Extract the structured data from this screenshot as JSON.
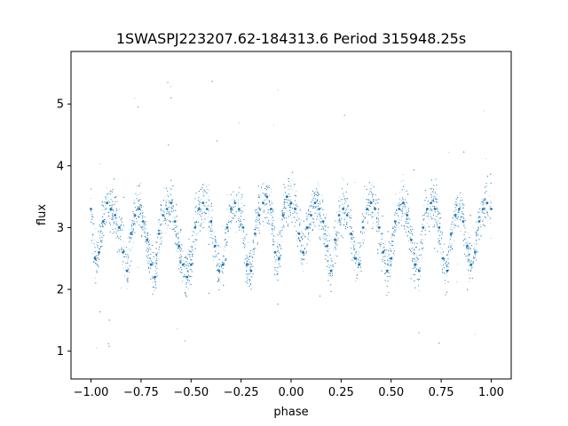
{
  "chart_data": {
    "type": "scatter",
    "title": "1SWASPJ223207.62-184313.6 Period 315948.25s",
    "xlabel": "phase",
    "ylabel": "flux",
    "xlim": [
      -1.1,
      1.1
    ],
    "ylim": [
      0.55,
      5.85
    ],
    "x_ticks": [
      -1.0,
      -0.75,
      -0.5,
      -0.25,
      0.0,
      0.25,
      0.5,
      0.75,
      1.0
    ],
    "x_tick_labels": [
      "−1.00",
      "−0.75",
      "−0.50",
      "−0.25",
      "0.00",
      "0.25",
      "0.50",
      "0.75",
      "1.00"
    ],
    "y_ticks": [
      1,
      2,
      3,
      4,
      5
    ],
    "y_tick_labels": [
      "1",
      "2",
      "3",
      "4",
      "5"
    ],
    "grid": false,
    "marker_color": "#1f77b4",
    "series": [
      {
        "x": [
          -1.0,
          -0.98,
          -0.96,
          -0.94,
          -0.92,
          -0.9,
          -0.88,
          -0.86,
          -0.84,
          -0.82,
          -0.8,
          -0.78,
          -0.76,
          -0.74,
          -0.72,
          -0.7,
          -0.68,
          -0.66,
          -0.64,
          -0.62,
          -0.6,
          -0.58,
          -0.56,
          -0.54,
          -0.52,
          -0.5,
          -0.48,
          -0.46,
          -0.44,
          -0.42,
          -0.4,
          -0.38,
          -0.36,
          -0.34,
          -0.32,
          -0.3,
          -0.28,
          -0.26,
          -0.24,
          -0.22,
          -0.2,
          -0.18,
          -0.16,
          -0.14,
          -0.12,
          -0.1,
          -0.08,
          -0.06,
          -0.04,
          -0.02,
          0.0,
          0.02,
          0.04,
          0.06,
          0.08,
          0.1,
          0.12,
          0.14,
          0.16,
          0.18,
          0.2,
          0.22,
          0.24,
          0.26,
          0.28,
          0.3,
          0.32,
          0.34,
          0.36,
          0.38,
          0.4,
          0.42,
          0.44,
          0.46,
          0.48,
          0.5,
          0.52,
          0.54,
          0.56,
          0.58,
          0.6,
          0.62,
          0.64,
          0.66,
          0.68,
          0.7,
          0.72,
          0.74,
          0.76,
          0.78,
          0.8,
          0.82,
          0.84,
          0.86,
          0.88,
          0.9,
          0.92,
          0.94,
          0.96,
          0.98,
          1.0
        ],
        "y": [
          3.3,
          2.5,
          2.6,
          3.1,
          3.4,
          3.3,
          3.2,
          3.0,
          2.6,
          2.3,
          2.9,
          3.2,
          3.3,
          3.1,
          2.8,
          2.4,
          2.2,
          2.9,
          3.2,
          3.3,
          3.4,
          3.1,
          2.7,
          2.4,
          2.2,
          2.4,
          3.0,
          3.3,
          3.4,
          3.3,
          3.1,
          2.7,
          2.3,
          2.4,
          3.0,
          3.3,
          3.4,
          3.3,
          3.0,
          2.4,
          2.3,
          2.9,
          3.2,
          3.4,
          3.5,
          3.3,
          2.6,
          2.5,
          3.2,
          3.5,
          3.4,
          3.3,
          2.9,
          2.6,
          3.0,
          3.2,
          3.4,
          3.3,
          3.1,
          2.7,
          2.3,
          2.8,
          3.2,
          3.3,
          3.2,
          2.9,
          2.5,
          2.4,
          3.0,
          3.3,
          3.4,
          3.3,
          3.0,
          2.6,
          2.3,
          2.5,
          3.1,
          3.3,
          3.4,
          3.2,
          2.8,
          2.4,
          2.3,
          3.0,
          3.3,
          3.4,
          3.3,
          3.0,
          2.5,
          2.3,
          2.9,
          3.2,
          3.3,
          3.1,
          2.7,
          2.4,
          2.6,
          3.1,
          3.3,
          3.4,
          3.3
        ],
        "spread": 0.35
      }
    ]
  }
}
